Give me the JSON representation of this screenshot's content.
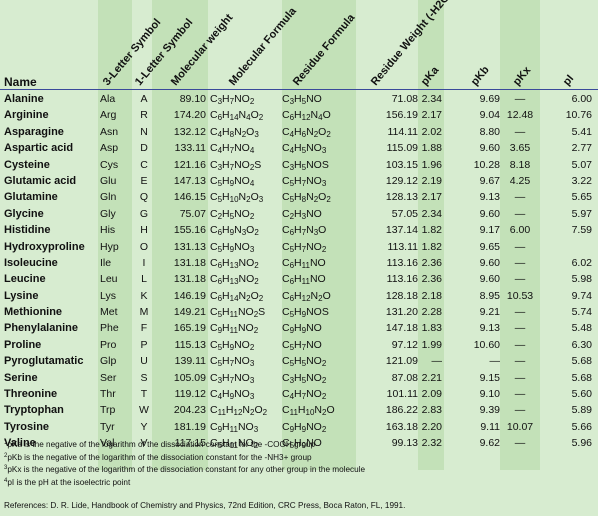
{
  "header": {
    "name": "Name",
    "three_letter": "3-Letter Symbol",
    "one_letter": "1-Letter Symbol",
    "molecular_weight": "Molecular weight",
    "molecular_formula": "Molecular Formula",
    "residue_formula": "Residue Formula",
    "residue_weight": "Residue Weight (-H2O)",
    "pka": "pKa",
    "pkb": "pKb",
    "pkx": "pKx",
    "pi": "pI"
  },
  "rows": [
    {
      "name": "Alanine",
      "s3": "Ala",
      "s1": "A",
      "mw": "89.10",
      "mf": "C3H7NO2",
      "rf": "C3H5NO",
      "rw": "71.08",
      "pka": "2.34",
      "pkb": "9.69",
      "pkx": "—",
      "pi": "6.00"
    },
    {
      "name": "Arginine",
      "s3": "Arg",
      "s1": "R",
      "mw": "174.20",
      "mf": "C6H14N4O2",
      "rf": "C6H12N4O",
      "rw": "156.19",
      "pka": "2.17",
      "pkb": "9.04",
      "pkx": "12.48",
      "pi": "10.76"
    },
    {
      "name": "Asparagine",
      "s3": "Asn",
      "s1": "N",
      "mw": "132.12",
      "mf": "C4H8N2O3",
      "rf": "C4H6N2O2",
      "rw": "114.11",
      "pka": "2.02",
      "pkb": "8.80",
      "pkx": "—",
      "pi": "5.41"
    },
    {
      "name": "Aspartic acid",
      "s3": "Asp",
      "s1": "D",
      "mw": "133.11",
      "mf": "C4H7NO4",
      "rf": "C4H5NO3",
      "rw": "115.09",
      "pka": "1.88",
      "pkb": "9.60",
      "pkx": "3.65",
      "pi": "2.77"
    },
    {
      "name": "Cysteine",
      "s3": "Cys",
      "s1": "C",
      "mw": "121.16",
      "mf": "C3H7NO2S",
      "rf": "C3H5NOS",
      "rw": "103.15",
      "pka": "1.96",
      "pkb": "10.28",
      "pkx": "8.18",
      "pi": "5.07"
    },
    {
      "name": "Glutamic acid",
      "s3": "Glu",
      "s1": "E",
      "mw": "147.13",
      "mf": "C5H9NO4",
      "rf": "C5H7NO3",
      "rw": "129.12",
      "pka": "2.19",
      "pkb": "9.67",
      "pkx": "4.25",
      "pi": "3.22"
    },
    {
      "name": "Glutamine",
      "s3": "Gln",
      "s1": "Q",
      "mw": "146.15",
      "mf": "C5H10N2O3",
      "rf": "C5H8N2O2",
      "rw": "128.13",
      "pka": "2.17",
      "pkb": "9.13",
      "pkx": "—",
      "pi": "5.65"
    },
    {
      "name": "Glycine",
      "s3": "Gly",
      "s1": "G",
      "mw": "75.07",
      "mf": "C2H5NO2",
      "rf": "C2H3NO",
      "rw": "57.05",
      "pka": "2.34",
      "pkb": "9.60",
      "pkx": "—",
      "pi": "5.97"
    },
    {
      "name": "Histidine",
      "s3": "His",
      "s1": "H",
      "mw": "155.16",
      "mf": "C6H9N3O2",
      "rf": "C6H7N3O",
      "rw": "137.14",
      "pka": "1.82",
      "pkb": "9.17",
      "pkx": "6.00",
      "pi": "7.59"
    },
    {
      "name": "Hydroxyproline",
      "s3": "Hyp",
      "s1": "O",
      "mw": "131.13",
      "mf": "C5H9NO3",
      "rf": "C5H7NO2",
      "rw": "113.11",
      "pka": "1.82",
      "pkb": "9.65",
      "pkx": "—",
      "pi": ""
    },
    {
      "name": "Isoleucine",
      "s3": "Ile",
      "s1": "I",
      "mw": "131.18",
      "mf": "C6H13NO2",
      "rf": "C6H11NO",
      "rw": "113.16",
      "pka": "2.36",
      "pkb": "9.60",
      "pkx": "—",
      "pi": "6.02"
    },
    {
      "name": "Leucine",
      "s3": "Leu",
      "s1": "L",
      "mw": "131.18",
      "mf": "C6H13NO2",
      "rf": "C6H11NO",
      "rw": "113.16",
      "pka": "2.36",
      "pkb": "9.60",
      "pkx": "—",
      "pi": "5.98"
    },
    {
      "name": "Lysine",
      "s3": "Lys",
      "s1": "K",
      "mw": "146.19",
      "mf": "C6H14N2O2",
      "rf": "C6H12N2O",
      "rw": "128.18",
      "pka": "2.18",
      "pkb": "8.95",
      "pkx": "10.53",
      "pi": "9.74"
    },
    {
      "name": "Methionine",
      "s3": "Met",
      "s1": "M",
      "mw": "149.21",
      "mf": "C5H11NO2S",
      "rf": "C5H9NOS",
      "rw": "131.20",
      "pka": "2.28",
      "pkb": "9.21",
      "pkx": "—",
      "pi": "5.74"
    },
    {
      "name": "Phenylalanine",
      "s3": "Phe",
      "s1": "F",
      "mw": "165.19",
      "mf": "C9H11NO2",
      "rf": "C9H9NO",
      "rw": "147.18",
      "pka": "1.83",
      "pkb": "9.13",
      "pkx": "—",
      "pi": "5.48"
    },
    {
      "name": "Proline",
      "s3": "Pro",
      "s1": "P",
      "mw": "115.13",
      "mf": "C5H9NO2",
      "rf": "C5H7NO",
      "rw": "97.12",
      "pka": "1.99",
      "pkb": "10.60",
      "pkx": "—",
      "pi": "6.30"
    },
    {
      "name": "Pyroglutamatic",
      "s3": "Glp",
      "s1": "U",
      "mw": "139.11",
      "mf": "C5H7NO3",
      "rf": "C5H5NO2",
      "rw": "121.09",
      "pka": "—",
      "pkb": "—",
      "pkx": "—",
      "pi": "5.68"
    },
    {
      "name": "Serine",
      "s3": "Ser",
      "s1": "S",
      "mw": "105.09",
      "mf": "C3H7NO3",
      "rf": "C3H5NO2",
      "rw": "87.08",
      "pka": "2.21",
      "pkb": "9.15",
      "pkx": "—",
      "pi": "5.68"
    },
    {
      "name": "Threonine",
      "s3": "Thr",
      "s1": "T",
      "mw": "119.12",
      "mf": "C4H9NO3",
      "rf": "C4H7NO2",
      "rw": "101.11",
      "pka": "2.09",
      "pkb": "9.10",
      "pkx": "—",
      "pi": "5.60"
    },
    {
      "name": "Tryptophan",
      "s3": "Trp",
      "s1": "W",
      "mw": "204.23",
      "mf": "C11H12N2O2",
      "rf": "C11H10N2O",
      "rw": "186.22",
      "pka": "2.83",
      "pkb": "9.39",
      "pkx": "—",
      "pi": "5.89"
    },
    {
      "name": "Tyrosine",
      "s3": "Tyr",
      "s1": "Y",
      "mw": "181.19",
      "mf": "C9H11NO3",
      "rf": "C9H9NO2",
      "rw": "163.18",
      "pka": "2.20",
      "pkb": "9.11",
      "pkx": "10.07",
      "pi": "5.66"
    },
    {
      "name": "Valine",
      "s3": "Val",
      "s1": "V",
      "mw": "117.15",
      "mf": "C5H11NO2",
      "rf": "C5H9NO",
      "rw": "99.13",
      "pka": "2.32",
      "pkb": "9.62",
      "pkx": "—",
      "pi": "5.96"
    }
  ],
  "notes": [
    "pKa  is the negative of the logarithm of the dissociation constant for the -COOH group",
    "pKb is the negative of the logarithm of the dissociation constant for the  -NH3+ group",
    "pKx is the negative of the logarithm of the dissociation constant for any other group in the molecule",
    "pI is the pH at the isoelectric point"
  ],
  "note_marks": [
    "1",
    "2",
    "3",
    "4"
  ],
  "references": "References:  D. R. Lide,  Handbook of Chemistry and Physics, 72nd Edition, CRC Press, Boca Raton, FL,  1991.",
  "colors": {
    "background": "#d7ecd0",
    "stripe": "#c3e1b8",
    "rule": "#3a4a9a"
  }
}
